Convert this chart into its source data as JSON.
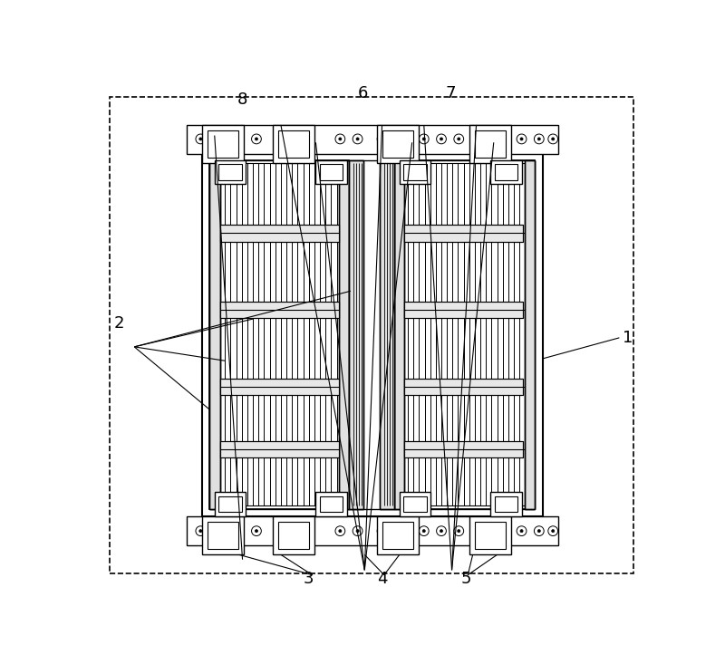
{
  "fig_width": 8.0,
  "fig_height": 7.33,
  "dpi": 100,
  "bg_color": "#ffffff",
  "lc": "#000000",
  "gray_light": "#e8e8e8",
  "gray_mid": "#d0d0d0",
  "gray_dark": "#a0a0a0"
}
